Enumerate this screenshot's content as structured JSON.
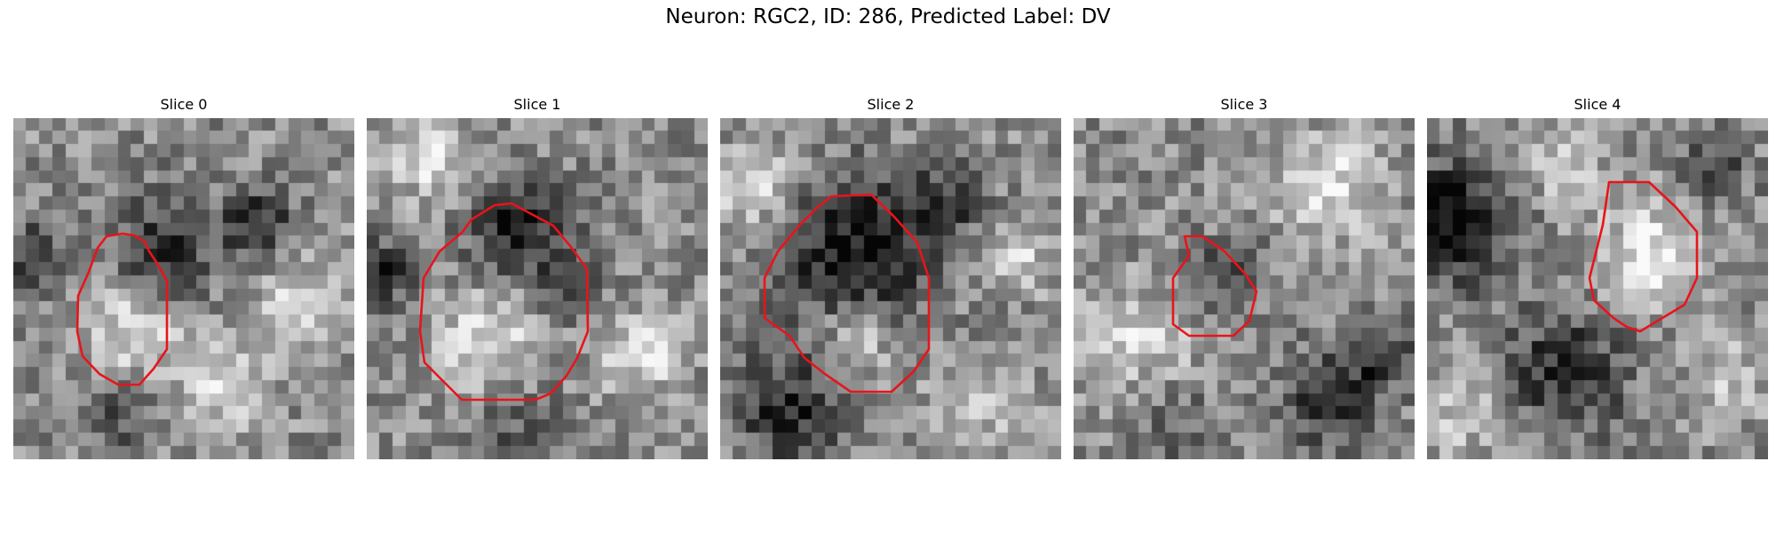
{
  "figure": {
    "title": "Neuron: RGC2, ID: 286, Predicted Label: DV",
    "contour_color": "#e8141b",
    "colormap": "grayscale"
  },
  "slices": [
    {
      "label": "Slice 0"
    },
    {
      "label": "Slice 1"
    },
    {
      "label": "Slice 2"
    },
    {
      "label": "Slice 3"
    },
    {
      "label": "Slice 4"
    }
  ]
}
